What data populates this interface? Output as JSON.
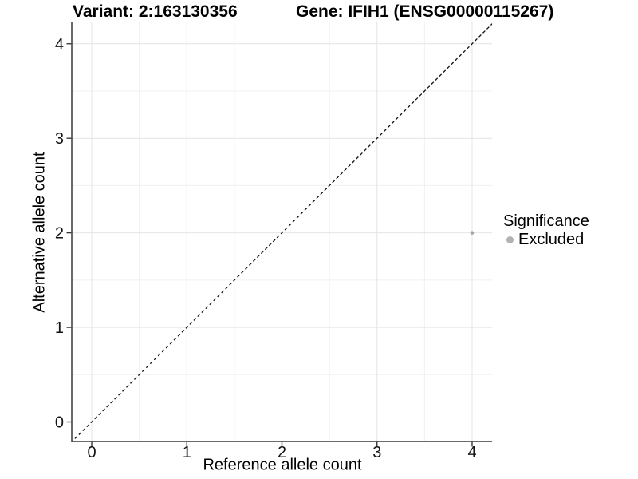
{
  "chart_data": {
    "type": "scatter",
    "variant_title": "Variant: 2:163130356",
    "gene_title": "Gene: IFIH1 (ENSG00000115267)",
    "xlabel": "Reference allele count",
    "ylabel": "Alternative allele count",
    "xticks": [
      0,
      1,
      2,
      3,
      4
    ],
    "yticks": [
      0,
      1,
      2,
      3,
      4
    ],
    "xlim": [
      -0.21,
      4.21
    ],
    "ylim": [
      -0.21,
      4.21
    ],
    "grid": "major+minor",
    "legend_position": "right",
    "points": [
      {
        "x": 4,
        "y": 2,
        "significance": "Excluded"
      }
    ],
    "identity_line": {
      "slope": 1,
      "intercept": 0,
      "style": "dashed"
    },
    "legend": {
      "title": "Significance",
      "entries": [
        {
          "label": "Excluded",
          "color": "#b2b2b2"
        }
      ]
    },
    "colors": {
      "point": "#a6a6a6",
      "grid_major": "#e4e4e4",
      "grid_minor": "#f0f0f0",
      "axis_line": "#383838",
      "identity_line": "#111111",
      "tick_label": "#141414",
      "title": "#000000",
      "background": "#ffffff"
    }
  }
}
